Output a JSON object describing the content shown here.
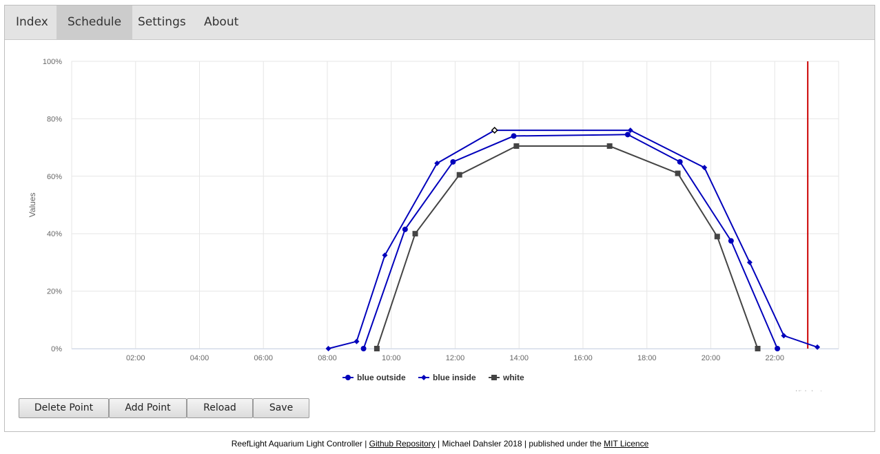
{
  "nav": {
    "tabs": [
      {
        "label": "Index",
        "active": false
      },
      {
        "label": "Schedule",
        "active": true
      },
      {
        "label": "Settings",
        "active": false
      },
      {
        "label": "About",
        "active": false
      }
    ]
  },
  "chart_data": {
    "type": "line",
    "title": "",
    "xlabel": "",
    "ylabel": "Values",
    "ylim": [
      0,
      100
    ],
    "xlim_hours": [
      0,
      24
    ],
    "x_ticks": [
      "02:00",
      "04:00",
      "06:00",
      "08:00",
      "10:00",
      "12:00",
      "14:00",
      "16:00",
      "18:00",
      "20:00",
      "22:00"
    ],
    "y_ticks": [
      "0%",
      "20%",
      "40%",
      "60%",
      "80%",
      "100%"
    ],
    "grid": true,
    "legend_position": "bottom",
    "series": [
      {
        "name": "blue outside",
        "color": "#0000bb",
        "marker": "circle",
        "x": [
          "09:08",
          "10:26",
          "11:56",
          "13:50",
          "17:24",
          "19:02",
          "20:38",
          "22:05"
        ],
        "y": [
          0,
          41.5,
          65,
          74,
          74.5,
          65,
          37.5,
          0
        ]
      },
      {
        "name": "blue inside",
        "color": "#0000bb",
        "marker": "diamond",
        "x": [
          "08:02",
          "08:55",
          "09:48",
          "11:26",
          "13:14",
          "17:29",
          "19:48",
          "21:13",
          "22:17",
          "23:20"
        ],
        "y": [
          0,
          2.5,
          32.5,
          64.5,
          76,
          76,
          63,
          30,
          4.5,
          0.5
        ]
      },
      {
        "name": "white",
        "color": "#444444",
        "marker": "square",
        "x": [
          "09:33",
          "10:45",
          "12:08",
          "13:55",
          "16:50",
          "18:58",
          "20:12",
          "21:28"
        ],
        "y": [
          0,
          40,
          60.5,
          70.5,
          70.5,
          61,
          39,
          0
        ]
      }
    ],
    "current_time": "23:02",
    "current_time_color": "#cc0000",
    "credit": "Highcharts.com"
  },
  "buttons": {
    "delete": "Delete Point",
    "add": "Add Point",
    "reload": "Reload",
    "save": "Save"
  },
  "footer": {
    "prefix": "ReefLight Aquarium Light Controller |",
    "repo_link": "Github Repository",
    "middle": "| Michael Dahsler 2018 | published under the",
    "licence_link": "MIT Licence"
  }
}
